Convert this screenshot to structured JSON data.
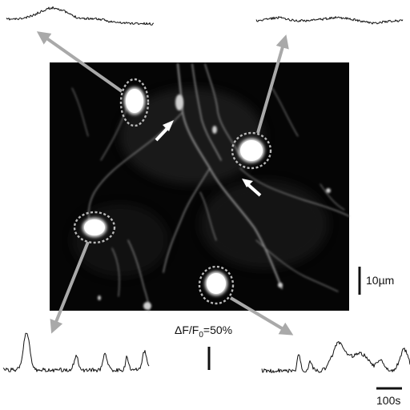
{
  "scale_bars": {
    "length": "10µm",
    "time": "100s"
  },
  "amplitude": {
    "prefix": "ΔF/F",
    "subscript": "0",
    "value": "=50%"
  },
  "colors": {
    "image_background": "#050505",
    "arrow": "#a9a9a9",
    "roi_circle": "#b8b8b8",
    "trace": "#111111",
    "marker_arrow": "#ffffff"
  },
  "rois": [
    "cell-top-left",
    "cell-top-right",
    "cell-bottom-left",
    "cell-bottom-right"
  ]
}
